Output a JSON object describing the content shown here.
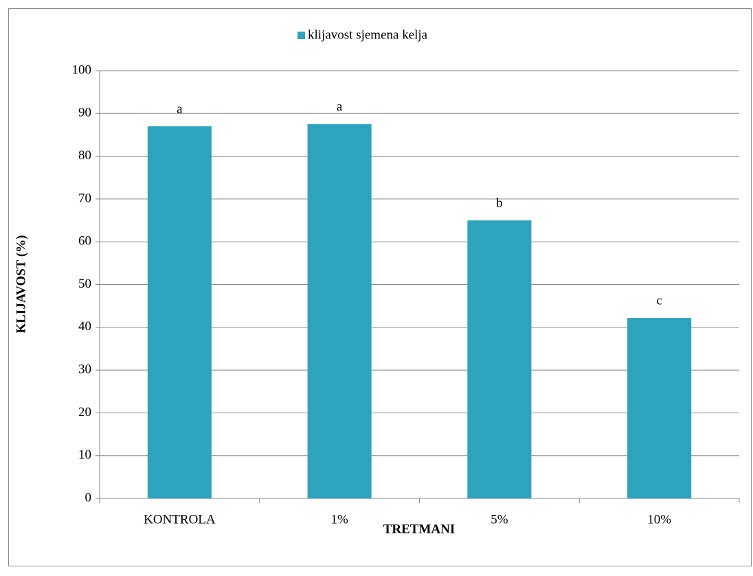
{
  "chart_data": {
    "type": "bar",
    "categories": [
      "KONTROLA",
      "1%",
      "5%",
      "10%"
    ],
    "series": [
      {
        "name": "klijavost sjemena kelja",
        "color": "#2ea3be",
        "values": [
          87,
          87.5,
          65,
          42.2
        ]
      }
    ],
    "annotations": [
      "a",
      "a",
      "b",
      "c"
    ],
    "xlabel": "TRETMANI",
    "ylabel": "KLIJAVOST (%)",
    "ylim": [
      0,
      100
    ],
    "yticks": [
      0,
      10,
      20,
      30,
      40,
      50,
      60,
      70,
      80,
      90,
      100
    ],
    "grid": true,
    "legend": "top"
  }
}
